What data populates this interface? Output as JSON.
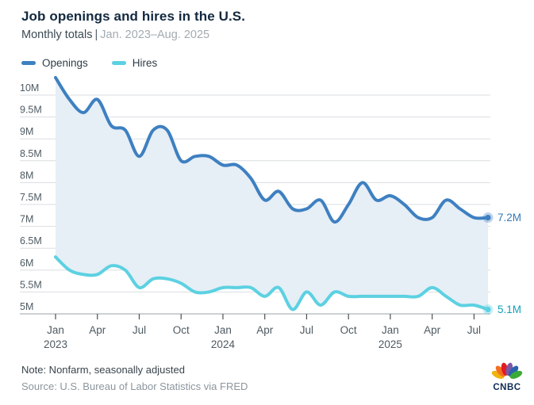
{
  "header": {
    "title": "Job openings and hires in the U.S.",
    "subtitle_bold": "Monthly totals",
    "subtitle_sep": "|",
    "subtitle_range": "Jan. 2023–Aug. 2025"
  },
  "legend": [
    {
      "label": "Openings",
      "color": "#3e80c1"
    },
    {
      "label": "Hires",
      "color": "#5cd1e1"
    }
  ],
  "chart_data": {
    "type": "line",
    "title": "Job openings and hires in the U.S.",
    "subtitle": "Monthly totals | Jan. 2023–Aug. 2025",
    "x": [
      "Jan 2023",
      "Feb 2023",
      "Mar 2023",
      "Apr 2023",
      "May 2023",
      "Jun 2023",
      "Jul 2023",
      "Aug 2023",
      "Sep 2023",
      "Oct 2023",
      "Nov 2023",
      "Dec 2023",
      "Jan 2024",
      "Feb 2024",
      "Mar 2024",
      "Apr 2024",
      "May 2024",
      "Jun 2024",
      "Jul 2024",
      "Aug 2024",
      "Sep 2024",
      "Oct 2024",
      "Nov 2024",
      "Dec 2024",
      "Jan 2025",
      "Feb 2025",
      "Mar 2025",
      "Apr 2025",
      "May 2025",
      "Jun 2025",
      "Jul 2025",
      "Aug 2025"
    ],
    "units": "millions",
    "series": [
      {
        "name": "Openings",
        "color": "#3e80c1",
        "end_label": "7.2M",
        "end_label_color": "#3579b8",
        "values": [
          10.4,
          9.9,
          9.6,
          9.9,
          9.3,
          9.2,
          8.6,
          9.2,
          9.2,
          8.5,
          8.6,
          8.6,
          8.4,
          8.4,
          8.1,
          7.6,
          7.8,
          7.4,
          7.4,
          7.6,
          7.1,
          7.5,
          8.0,
          7.6,
          7.7,
          7.5,
          7.2,
          7.2,
          7.6,
          7.4,
          7.2,
          7.2
        ]
      },
      {
        "name": "Hires",
        "color": "#5cd1e1",
        "end_label": "5.1M",
        "end_label_color": "#12a0b6",
        "values": [
          6.3,
          6.0,
          5.9,
          5.9,
          6.1,
          6.0,
          5.6,
          5.8,
          5.8,
          5.7,
          5.5,
          5.5,
          5.6,
          5.6,
          5.6,
          5.4,
          5.6,
          5.1,
          5.5,
          5.2,
          5.5,
          5.4,
          5.4,
          5.4,
          5.4,
          5.4,
          5.4,
          5.6,
          5.4,
          5.2,
          5.2,
          5.1
        ]
      }
    ],
    "band_fill": "#e6eef6",
    "ylim": [
      5,
      10.5
    ],
    "yticks": [
      {
        "v": 10,
        "label": "10M"
      },
      {
        "v": 9.5,
        "label": "9.5M"
      },
      {
        "v": 9,
        "label": "9M"
      },
      {
        "v": 8.5,
        "label": "8.5M"
      },
      {
        "v": 8,
        "label": "8M"
      },
      {
        "v": 7.5,
        "label": "7.5M"
      },
      {
        "v": 7,
        "label": "7M"
      },
      {
        "v": 6.5,
        "label": "6.5M"
      },
      {
        "v": 6,
        "label": "6M"
      },
      {
        "v": 5.5,
        "label": "5.5M"
      },
      {
        "v": 5,
        "label": "5M"
      }
    ],
    "xticks": [
      {
        "i": 0,
        "label": "Jan",
        "year": "2023"
      },
      {
        "i": 3,
        "label": "Apr"
      },
      {
        "i": 6,
        "label": "Jul"
      },
      {
        "i": 9,
        "label": "Oct"
      },
      {
        "i": 12,
        "label": "Jan",
        "year": "2024"
      },
      {
        "i": 15,
        "label": "Apr"
      },
      {
        "i": 18,
        "label": "Jul"
      },
      {
        "i": 21,
        "label": "Oct"
      },
      {
        "i": 24,
        "label": "Jan",
        "year": "2025"
      },
      {
        "i": 27,
        "label": "Apr"
      },
      {
        "i": 30,
        "label": "Jul"
      }
    ],
    "grid": true,
    "legend_position": "top-left",
    "colors": {
      "grid": "#dadde0",
      "axis_line": "#9aa3aa",
      "tick_mark": "#4a4f54",
      "tick_text": "#4e5a62"
    }
  },
  "footer": {
    "note": "Note: Nonfarm, seasonally adjusted",
    "source": "Source: U.S. Bureau of Labor Statistics via FRED",
    "logo_text": "CNBC"
  },
  "logo_colors": [
    "#f0b310",
    "#f36f21",
    "#e11b22",
    "#7e57a5",
    "#2a63ad",
    "#3aaa35"
  ]
}
